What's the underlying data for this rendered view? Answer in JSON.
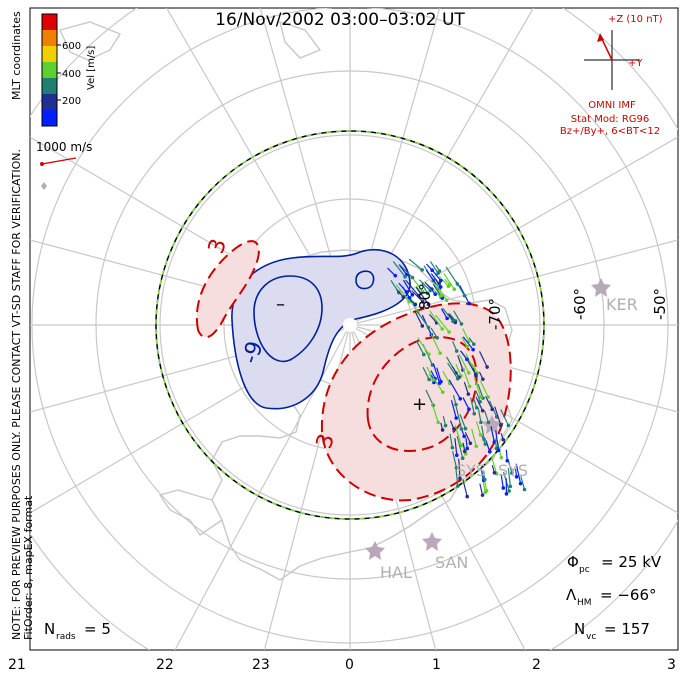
{
  "title": "16/Nov/2002 03:00–03:02 UT",
  "scale": {
    "vel_label": "Vel [m/s]",
    "ticks": [
      "600",
      "400",
      "200"
    ],
    "colors": [
      "#e00000",
      "#f08000",
      "#f0d000",
      "#60d030",
      "#208070",
      "#203090",
      "#0020ff"
    ],
    "ref_vector_label": "1000 m/s",
    "ref_vector_color": "#d00000"
  },
  "side_notes": {
    "coords": "MLT coordinates",
    "preview": "NOTE: FOR PREVIEW PURPOSES ONLY. PLEASE CONTACT VT-SD STAFF FOR VERIFICATION.",
    "fit": "FitOrder: 8, mapEX format"
  },
  "imf": {
    "z_label": "+Z (10 nT)",
    "y_label": "+Y",
    "source": "OMNI IMF",
    "stat_mod": "Stat Mod: RG96",
    "condition": "Bz+/By+, 6<BT<12",
    "color": "#cc0000"
  },
  "lat_labels": [
    "80°",
    "-70°",
    "-60°",
    "-50°"
  ],
  "stations": [
    "KER",
    "SYS",
    "SYS",
    "HAL",
    "SAN"
  ],
  "cells": {
    "positive_label": "3",
    "positive_label_2": "3",
    "negative_label": "-9",
    "min_marker": "–",
    "max_marker": "+",
    "positive_color": "#cc0000",
    "negative_color": "#0020a0"
  },
  "stats": {
    "phi_sym": "Φ",
    "phi_sub": "pc",
    "phi_val": "=  25 kV",
    "lambda_sym": "Λ",
    "lambda_sub": "HM",
    "lambda_val": "=  −66°",
    "nvc_sym": "N",
    "nvc_sub": "vc",
    "nvc_val": "=  157",
    "nrads_sym": "N",
    "nrads_sub": "rads",
    "nrads_val": "=  5"
  },
  "mlt_ticks": [
    "21",
    "22",
    "23",
    "0",
    "1",
    "2",
    "3"
  ]
}
